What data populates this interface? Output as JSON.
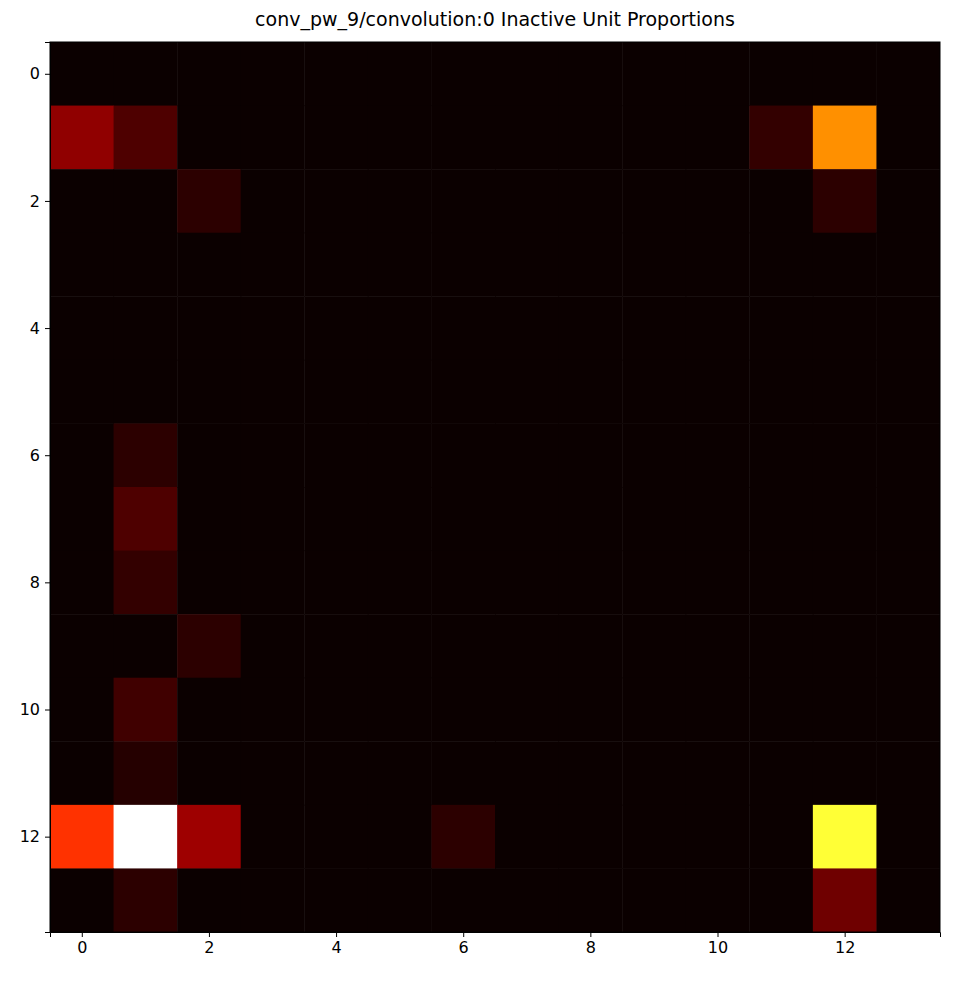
{
  "chart_data": {
    "type": "heatmap",
    "title": "conv_pw_9/convolution:0 Inactive Unit Proportions",
    "color": "hot",
    "xlim": [
      -0.5,
      13.5
    ],
    "ylim": [
      13.5,
      -0.5
    ],
    "xticks": [
      0,
      2,
      4,
      6,
      8,
      10,
      12
    ],
    "yticks": [
      0,
      2,
      4,
      6,
      8,
      10,
      12
    ],
    "cells": [
      [
        0,
        0,
        0,
        0,
        0,
        0,
        0,
        0,
        0,
        0,
        0,
        0,
        0,
        0
      ],
      [
        0.2,
        0.1,
        0,
        0,
        0,
        0,
        0,
        0,
        0,
        0,
        0,
        0.06,
        0.58,
        0
      ],
      [
        0,
        0,
        0.05,
        0,
        0,
        0,
        0,
        0,
        0,
        0,
        0,
        0,
        0.05,
        0
      ],
      [
        0,
        0,
        0,
        0,
        0,
        0,
        0,
        0,
        0,
        0,
        0,
        0,
        0,
        0
      ],
      [
        0,
        0,
        0,
        0,
        0,
        0,
        0,
        0,
        0,
        0,
        0,
        0,
        0,
        0
      ],
      [
        0,
        0,
        0,
        0,
        0,
        0,
        0,
        0,
        0,
        0,
        0,
        0,
        0,
        0
      ],
      [
        0,
        0.05,
        0,
        0,
        0,
        0,
        0,
        0,
        0,
        0,
        0,
        0,
        0,
        0
      ],
      [
        0,
        0.1,
        0,
        0,
        0,
        0,
        0,
        0,
        0,
        0,
        0,
        0,
        0,
        0
      ],
      [
        0,
        0.06,
        0,
        0,
        0,
        0,
        0,
        0,
        0,
        0,
        0,
        0,
        0,
        0
      ],
      [
        0,
        0,
        0.05,
        0,
        0,
        0,
        0,
        0,
        0,
        0,
        0,
        0,
        0,
        0
      ],
      [
        0,
        0.08,
        0,
        0,
        0,
        0,
        0,
        0,
        0,
        0,
        0,
        0,
        0,
        0
      ],
      [
        0,
        0.04,
        0,
        0,
        0,
        0,
        0,
        0,
        0,
        0,
        0,
        0,
        0,
        0
      ],
      [
        0.44,
        1.0,
        0.22,
        0,
        0,
        0,
        0.05,
        0,
        0,
        0,
        0,
        0,
        0.8,
        0
      ],
      [
        0,
        0.05,
        0,
        0,
        0,
        0,
        0,
        0,
        0,
        0,
        0,
        0,
        0.15,
        0
      ]
    ]
  }
}
